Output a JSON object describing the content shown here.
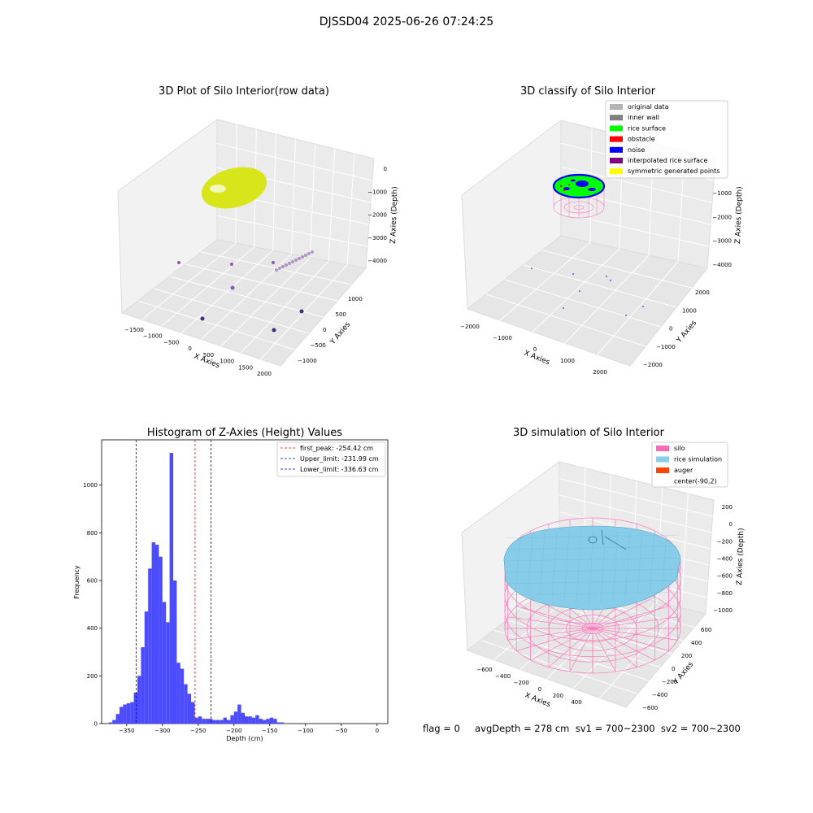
{
  "figure": {
    "suptitle": "DJSSD04 2025-06-26 07:24:25",
    "status_line": "flag = 0     avgDepth = 278 cm  sv1 = 700~2300  sv2 = 700~2300"
  },
  "colors": {
    "histogram_bar": "#4b4bff",
    "first_peak_line": "#ff0000",
    "limit_line": "#0000cc",
    "raw_surface": "#d8e51a",
    "raw_points": "#8a5bb0",
    "silo_wire": "#ff69b4",
    "rice_sim": "#87cdea",
    "auger": "#ff4500",
    "rice_surface_green": "#00ff00",
    "noise_blue": "#0000ff"
  },
  "panels": {
    "raw": {
      "title": "3D Plot of Silo Interior(row data)",
      "xlabel": "X Axies",
      "ylabel": "Y Axies",
      "zlabel": "Z Axies (Depth)",
      "xticks": [
        "−1500",
        "−1000",
        "−500",
        "0",
        "500",
        "1000",
        "1500",
        "2000"
      ],
      "yticks": [
        "−1000",
        "−500",
        "0",
        "500",
        "1000"
      ],
      "zticks": [
        "0",
        "−1000",
        "−2000",
        "−3000",
        "−4000"
      ]
    },
    "classify": {
      "title": "3D classify of Silo Interior",
      "xlabel": "X Axies",
      "ylabel": "Y Axies",
      "zlabel": "Z Axies (Depth)",
      "xticks": [
        "−2000",
        "−1000",
        "0",
        "1000",
        "2000"
      ],
      "yticks": [
        "−2000",
        "−1000",
        "0",
        "1000",
        "2000"
      ],
      "zticks": [
        "−1000",
        "−2000",
        "−3000",
        "−4000"
      ],
      "legend": [
        {
          "label": "original data",
          "color": "#b3b3b3"
        },
        {
          "label": "inner wall",
          "color": "#808080"
        },
        {
          "label": "rice surface",
          "color": "#00ff00"
        },
        {
          "label": "obstacle",
          "color": "#ff0000"
        },
        {
          "label": "noise",
          "color": "#0000ff"
        },
        {
          "label": "interpolated rice surface",
          "color": "#800080"
        },
        {
          "label": "symmetric generated points",
          "color": "#ffff00"
        }
      ]
    },
    "simulation": {
      "title": "3D simulation of Silo Interior",
      "xlabel": "X Axies",
      "ylabel": "Y Axies",
      "zlabel": "Z Axies (Depth)",
      "xticks": [
        "−600",
        "−400",
        "−200",
        "0",
        "200",
        "400"
      ],
      "yticks": [
        "−600",
        "−400",
        "−200",
        "0",
        "200",
        "400",
        "600"
      ],
      "zticks": [
        "200",
        "0",
        "−200",
        "−400",
        "−600",
        "−800",
        "−1000"
      ],
      "legend": [
        {
          "label": "silo",
          "color": "#ff69b4"
        },
        {
          "label": "rice simulation",
          "color": "#87ceeb"
        },
        {
          "label": "auger",
          "color": "#ff4500"
        },
        {
          "label": "center(-90,2)",
          "color": ""
        }
      ]
    }
  },
  "chart_data": {
    "type": "bar",
    "title": "Histogram of Z-Axies (Height) Values",
    "xlabel": "Depth (cm)",
    "ylabel": "Frequency",
    "xlim": [
      -385,
      15
    ],
    "ylim": [
      0,
      1190
    ],
    "xticks": [
      -350,
      -300,
      -250,
      -200,
      -150,
      -100,
      -50,
      0
    ],
    "yticks": [
      0,
      200,
      400,
      600,
      800,
      1000
    ],
    "bin_width": 5,
    "bin_starts": [
      -375,
      -370,
      -365,
      -360,
      -355,
      -350,
      -345,
      -340,
      -335,
      -330,
      -325,
      -320,
      -315,
      -310,
      -305,
      -300,
      -295,
      -290,
      -285,
      -280,
      -275,
      -270,
      -265,
      -260,
      -255,
      -250,
      -245,
      -240,
      -235,
      -230,
      -225,
      -220,
      -215,
      -210,
      -205,
      -200,
      -195,
      -190,
      -185,
      -180,
      -175,
      -170,
      -165,
      -160,
      -155,
      -150,
      -145,
      -140,
      -135,
      -130,
      -125,
      -120,
      -115,
      -110,
      -105,
      -100,
      -95,
      -90,
      -85,
      -80,
      -75,
      -70,
      -65,
      -60,
      -55,
      -50,
      -45,
      -40,
      -35,
      -30,
      -25,
      -20,
      -15,
      -10,
      -5,
      0
    ],
    "counts": [
      5,
      15,
      40,
      70,
      80,
      85,
      90,
      130,
      200,
      320,
      470,
      650,
      760,
      750,
      700,
      510,
      425,
      1135,
      600,
      255,
      230,
      165,
      125,
      90,
      25,
      30,
      20,
      20,
      20,
      15,
      15,
      15,
      25,
      15,
      35,
      50,
      80,
      45,
      30,
      30,
      25,
      35,
      20,
      15,
      20,
      25,
      20,
      5,
      5,
      0,
      0,
      0,
      0,
      0,
      0,
      0,
      0,
      0,
      0,
      0,
      0,
      0,
      0,
      0,
      0,
      0,
      0,
      0,
      0,
      0,
      0,
      0,
      0,
      0,
      0,
      0
    ],
    "vlines": [
      {
        "name": "first_peak: -254.42 cm",
        "x": -254.42,
        "color": "#ff0000"
      },
      {
        "name": "Upper_limit: -231.99 cm",
        "x": -231.99,
        "color": "#0000cc"
      },
      {
        "name": "Lower_limit: -336.63 cm",
        "x": -336.63,
        "color": "#0000cc"
      }
    ],
    "legend_position": "upper right"
  }
}
